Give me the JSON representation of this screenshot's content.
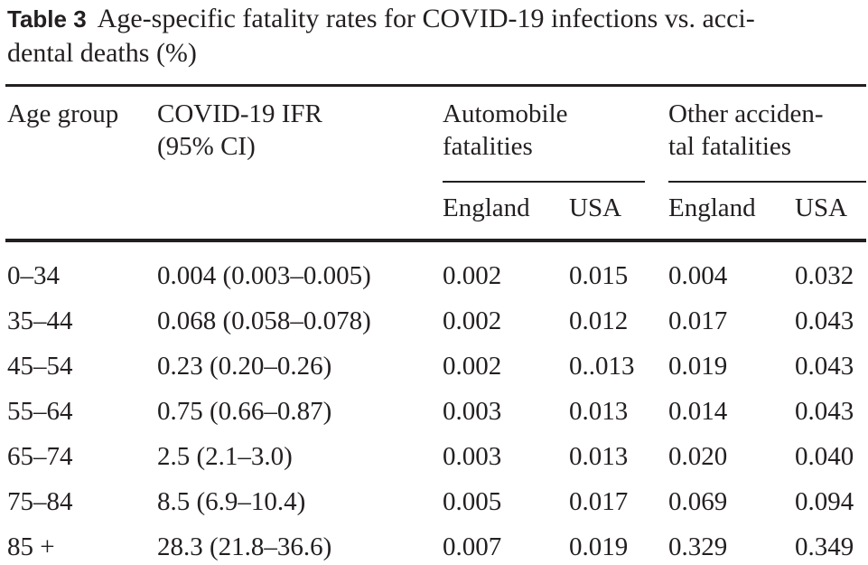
{
  "caption": {
    "label": "Table 3",
    "line1": "Age-specific fatality rates for COVID-19 infections vs. acci-",
    "line2": "dental deaths (%)"
  },
  "headers": {
    "age_group": "Age group",
    "covid_line1": "COVID-19 IFR",
    "covid_line2": "(95% CI)",
    "auto_line1": "Automobile",
    "auto_line2": "fatalities",
    "other_line1": "Other acciden-",
    "other_line2": "tal fatalities",
    "england_1": "England",
    "usa_1": "USA",
    "england_2": "England",
    "usa_2": "USA"
  },
  "rows": [
    {
      "age": "0–34",
      "ifr": "0.004 (0.003–0.005)",
      "auto_eng": "0.002",
      "auto_usa": "0.015",
      "other_eng": "0.004",
      "other_usa": "0.032"
    },
    {
      "age": "35–44",
      "ifr": "0.068 (0.058–0.078)",
      "auto_eng": "0.002",
      "auto_usa": "0.012",
      "other_eng": "0.017",
      "other_usa": "0.043"
    },
    {
      "age": "45–54",
      "ifr": "0.23 (0.20–0.26)",
      "auto_eng": "0.002",
      "auto_usa": "0..013",
      "other_eng": "0.019",
      "other_usa": "0.043"
    },
    {
      "age": "55–64",
      "ifr": "0.75 (0.66–0.87)",
      "auto_eng": "0.003",
      "auto_usa": "0.013",
      "other_eng": "0.014",
      "other_usa": "0.043"
    },
    {
      "age": "65–74",
      "ifr": "2.5 (2.1–3.0)",
      "auto_eng": "0.003",
      "auto_usa": "0.013",
      "other_eng": "0.020",
      "other_usa": "0.040"
    },
    {
      "age": "75–84",
      "ifr": "8.5 (6.9–10.4)",
      "auto_eng": "0.005",
      "auto_usa": "0.017",
      "other_eng": "0.069",
      "other_usa": "0.094"
    },
    {
      "age": "85 +",
      "ifr": "28.3 (21.8–36.6)",
      "auto_eng": "0.007",
      "auto_usa": "0.019",
      "other_eng": "0.329",
      "other_usa": "0.349"
    }
  ]
}
